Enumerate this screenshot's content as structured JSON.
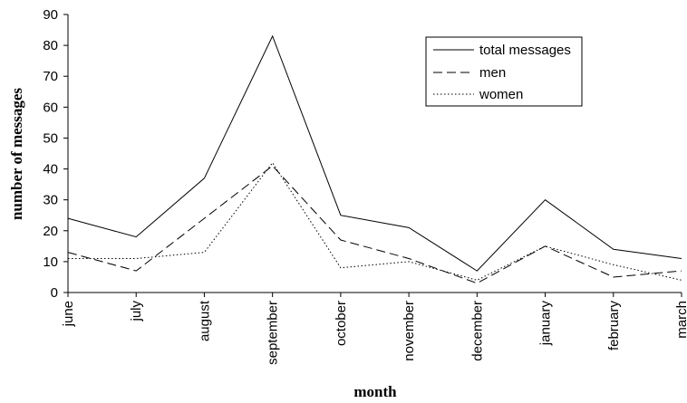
{
  "chart_data": {
    "type": "line",
    "title": "",
    "xlabel": "month",
    "ylabel": "number of messages",
    "categories": [
      "june",
      "july",
      "august",
      "september",
      "october",
      "november",
      "december",
      "january",
      "february",
      "march"
    ],
    "ylim": [
      0,
      90
    ],
    "yticks": [
      0,
      10,
      20,
      30,
      40,
      50,
      60,
      70,
      80,
      90
    ],
    "grid": false,
    "legend_position": "top-right",
    "series": [
      {
        "name": "total messages",
        "style": "solid",
        "values": [
          24,
          18,
          37,
          83,
          25,
          21,
          7,
          30,
          14,
          11
        ]
      },
      {
        "name": "men",
        "style": "dashed",
        "values": [
          13,
          7,
          24,
          41,
          17,
          11,
          3,
          15,
          5,
          7
        ]
      },
      {
        "name": "women",
        "style": "dotted",
        "values": [
          11,
          11,
          13,
          42,
          8,
          10,
          4,
          15,
          9,
          4
        ]
      }
    ]
  }
}
